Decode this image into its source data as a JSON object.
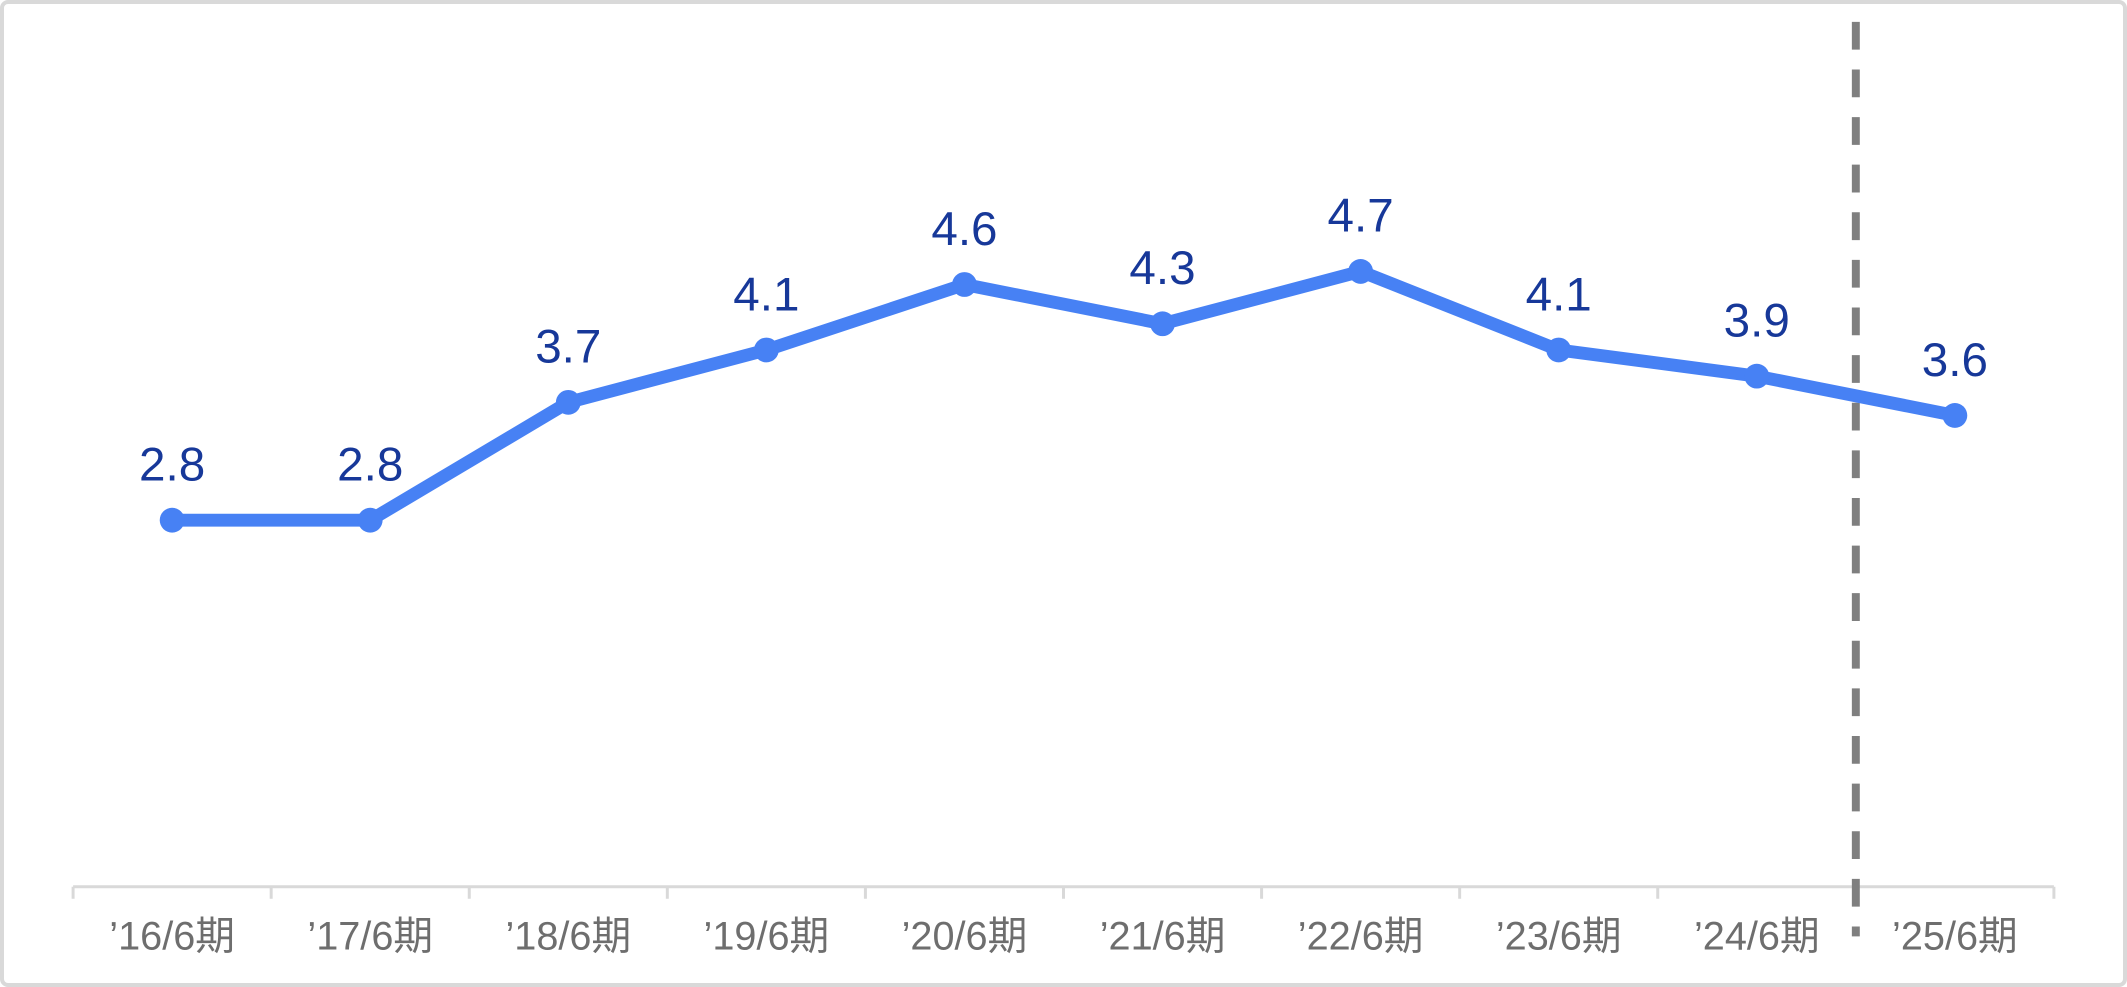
{
  "page": {
    "background_color": "#ffffff",
    "card_border_color": "#d9d9d9"
  },
  "chart_data": {
    "type": "line",
    "title": "",
    "categories": [
      "’16/6期",
      "’17/6期",
      "’18/6期",
      "’19/6期",
      "’20/6期",
      "’21/6期",
      "’22/6期",
      "’23/6期",
      "’24/6期",
      "’25/6期"
    ],
    "series": [
      {
        "name": "",
        "values": [
          2.8,
          2.8,
          3.7,
          4.1,
          4.6,
          4.3,
          4.7,
          4.1,
          3.9,
          3.6
        ],
        "value_labels": [
          "2.8",
          "2.8",
          "3.7",
          "4.1",
          "4.6",
          "4.3",
          "4.7",
          "4.1",
          "3.9",
          "3.6"
        ]
      }
    ],
    "xlabel": "",
    "ylabel": "",
    "ylim": [
      0,
      6.6
    ],
    "grid": false,
    "legend": false,
    "y_axis_visible": false,
    "x_axis": {
      "line_color": "#d9d9d9",
      "tick_color": "#d9d9d9",
      "label_color": "#6e6e6e"
    },
    "line_color": "#4781f4",
    "marker_color": "#4781f4",
    "data_label_color": "#173899",
    "separator": {
      "type": "dashed-vertical-line",
      "before_category": "’25/6期",
      "before_index": 9,
      "color": "#7f7f7f"
    }
  }
}
